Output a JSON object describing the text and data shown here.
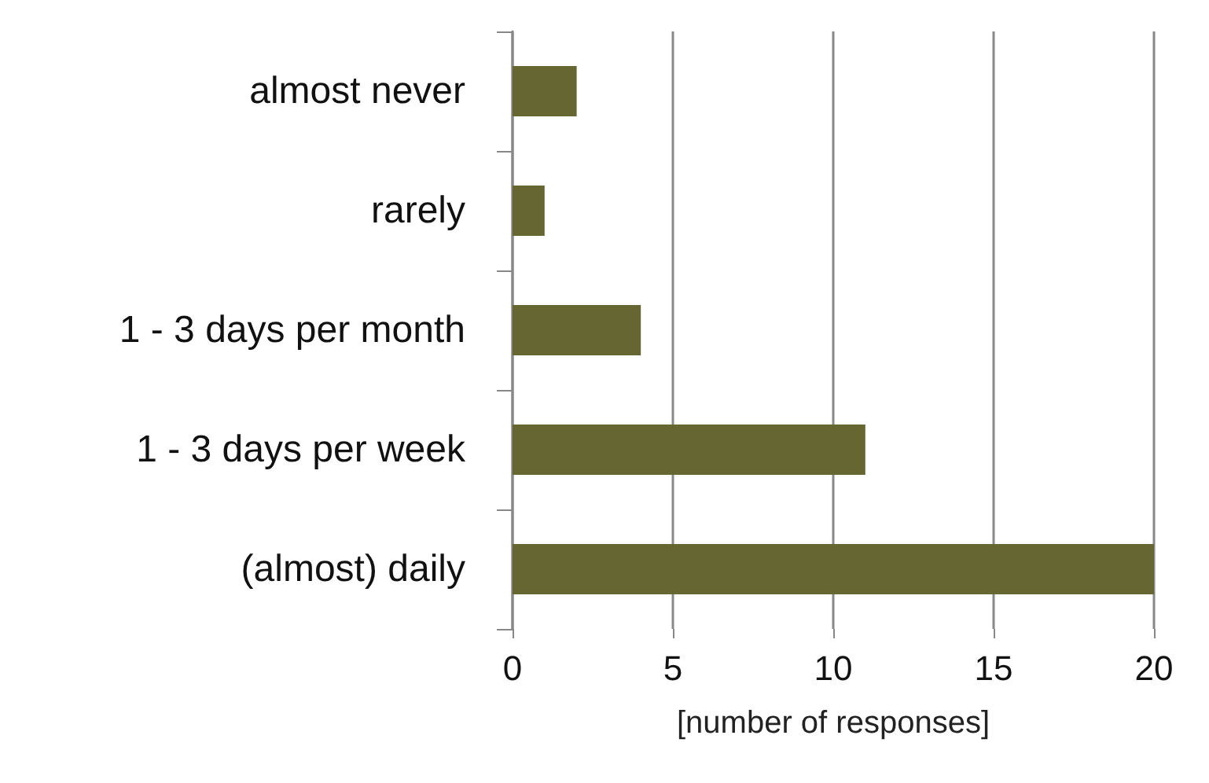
{
  "chart_data": {
    "type": "bar",
    "orientation": "horizontal",
    "xlabel": "[number of responses]",
    "categories": [
      "almost never",
      "rarely",
      "1 - 3 days per month",
      "1 - 3 days per week",
      "(almost) daily"
    ],
    "values": [
      2,
      1,
      4,
      11,
      20
    ],
    "color": "#666633",
    "xlim": [
      0,
      20
    ],
    "xticks": [
      0,
      5,
      10,
      15,
      20
    ],
    "grid": "x"
  }
}
